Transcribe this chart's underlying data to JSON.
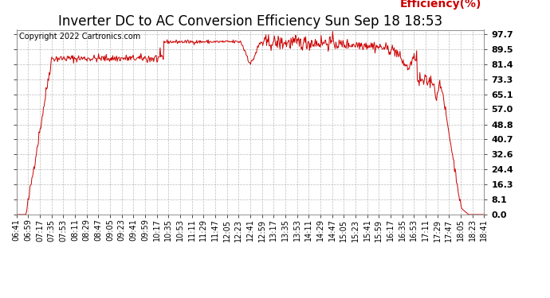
{
  "title": "Inverter DC to AC Conversion Efficiency Sun Sep 18 18:53",
  "copyright_text": "Copyright 2022 Cartronics.com",
  "legend_label": "Efficiency(%)",
  "line_color": "#cc0000",
  "background_color": "#ffffff",
  "plot_bg_color": "#ffffff",
  "grid_color": "#aaaaaa",
  "yticks": [
    0.0,
    8.1,
    16.3,
    24.4,
    32.6,
    40.7,
    48.8,
    57.0,
    65.1,
    73.3,
    81.4,
    89.5,
    97.7
  ],
  "xtick_labels": [
    "06:41",
    "06:59",
    "07:17",
    "07:35",
    "07:53",
    "08:11",
    "08:29",
    "08:47",
    "09:05",
    "09:23",
    "09:41",
    "09:59",
    "10:17",
    "10:35",
    "10:53",
    "11:11",
    "11:29",
    "11:47",
    "12:05",
    "12:23",
    "12:41",
    "12:59",
    "13:17",
    "13:35",
    "13:53",
    "14:11",
    "14:29",
    "14:47",
    "15:05",
    "15:23",
    "15:41",
    "15:59",
    "16:17",
    "16:35",
    "16:53",
    "17:11",
    "17:29",
    "17:47",
    "18:05",
    "18:23",
    "18:41"
  ],
  "title_fontsize": 12,
  "axis_fontsize": 7,
  "legend_fontsize": 10,
  "copyright_fontsize": 7,
  "ymin": 0.0,
  "ymax": 100.0,
  "n_points": 730
}
